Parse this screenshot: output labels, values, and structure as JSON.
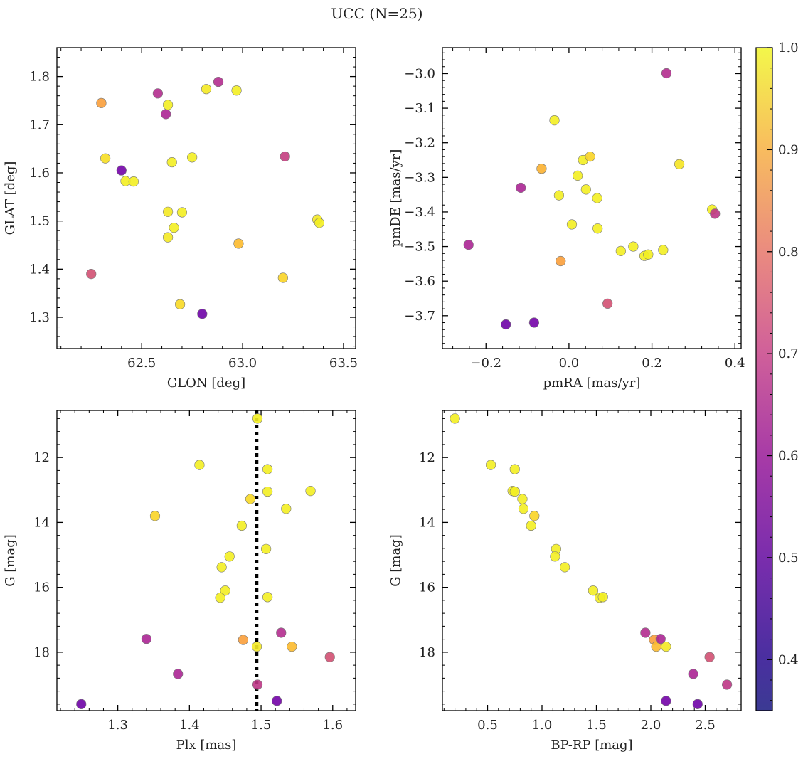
{
  "figure": {
    "title": "UCC (N=25)"
  },
  "colorbar": {
    "colormap": "plasma",
    "vmin": 0.35,
    "vmax": 1.0,
    "ticks": [
      0.4,
      0.5,
      0.6,
      0.7,
      0.8,
      0.9,
      1.0
    ],
    "tick_labels": [
      "0.4",
      "0.5",
      "0.6",
      "0.7",
      "0.8",
      "0.9",
      "1.0"
    ]
  },
  "chart_data": [
    {
      "id": "glon-glat",
      "type": "scatter",
      "title": "",
      "xlabel": "GLON [deg]",
      "ylabel": "GLAT [deg]",
      "xlim": [
        62.08,
        63.56
      ],
      "ylim": [
        1.235,
        1.86
      ],
      "xticks": [
        62.5,
        63.0,
        63.5
      ],
      "xtick_labels": [
        "62.5",
        "63.0",
        "63.5"
      ],
      "yticks": [
        1.3,
        1.4,
        1.5,
        1.6,
        1.7,
        1.8
      ],
      "ytick_labels": [
        "1.3",
        "1.4",
        "1.5",
        "1.6",
        "1.7",
        "1.8"
      ],
      "x": [
        62.25,
        62.3,
        62.32,
        62.4,
        62.42,
        62.46,
        62.58,
        62.62,
        62.63,
        62.63,
        62.63,
        62.65,
        62.66,
        62.69,
        62.7,
        62.75,
        62.8,
        62.82,
        62.88,
        62.97,
        62.98,
        63.2,
        63.21,
        63.37,
        63.38
      ],
      "y": [
        1.39,
        1.745,
        1.63,
        1.605,
        1.583,
        1.582,
        1.765,
        1.722,
        1.741,
        1.519,
        1.466,
        1.622,
        1.486,
        1.327,
        1.518,
        1.632,
        1.307,
        1.774,
        1.789,
        1.771,
        1.453,
        1.382,
        1.634,
        1.503,
        1.496
      ],
      "c": [
        0.62,
        0.82,
        0.95,
        0.37,
        0.98,
        0.98,
        0.52,
        0.5,
        0.98,
        0.97,
        0.97,
        0.98,
        0.98,
        0.94,
        0.98,
        0.98,
        0.36,
        0.97,
        0.52,
        0.98,
        0.88,
        0.93,
        0.57,
        0.97,
        0.98
      ],
      "vlines": []
    },
    {
      "id": "pmra-pmde",
      "type": "scatter",
      "title": "",
      "xlabel": "pmRA [mas/yr]",
      "ylabel": "pmDE [mas/yr]",
      "xlim": [
        -0.305,
        0.415
      ],
      "ylim": [
        -3.795,
        -2.925
      ],
      "xticks": [
        -0.2,
        0.0,
        0.2,
        0.4
      ],
      "xtick_labels": [
        "−0.2",
        "0.0",
        "0.2",
        "0.4"
      ],
      "yticks": [
        -3.7,
        -3.6,
        -3.5,
        -3.4,
        -3.3,
        -3.2,
        -3.1,
        -3.0
      ],
      "ytick_labels": [
        "−3.7",
        "−3.6",
        "−3.5",
        "−3.4",
        "−3.3",
        "−3.2",
        "−3.1",
        "−3.0"
      ],
      "x": [
        -0.242,
        -0.152,
        -0.116,
        -0.084,
        -0.066,
        -0.035,
        -0.024,
        -0.02,
        0.007,
        0.021,
        0.034,
        0.041,
        0.051,
        0.068,
        0.069,
        0.093,
        0.125,
        0.155,
        0.182,
        0.191,
        0.227,
        0.235,
        0.266,
        0.345,
        0.352
      ],
      "y": [
        -3.495,
        -3.725,
        -3.33,
        -3.72,
        -3.275,
        -3.135,
        -3.352,
        -3.542,
        -3.436,
        -3.295,
        -3.25,
        -3.335,
        -3.24,
        -3.36,
        -3.448,
        -3.665,
        -3.513,
        -3.5,
        -3.527,
        -3.523,
        -3.51,
        -2.999,
        -3.262,
        -3.393,
        -3.405
      ],
      "c": [
        0.5,
        0.36,
        0.5,
        0.37,
        0.86,
        0.98,
        0.98,
        0.82,
        0.98,
        0.98,
        0.98,
        0.98,
        0.93,
        0.98,
        0.98,
        0.62,
        0.98,
        0.98,
        0.98,
        0.98,
        0.98,
        0.52,
        0.96,
        0.98,
        0.55
      ],
      "vlines": []
    },
    {
      "id": "plx-g",
      "type": "scatter",
      "title": "",
      "xlabel": "Plx [mas]",
      "ylabel": "G [mag]",
      "xlim": [
        1.215,
        1.632
      ],
      "ylim": [
        19.8,
        10.55
      ],
      "y_inverted": true,
      "xticks": [
        1.3,
        1.4,
        1.5,
        1.6
      ],
      "xtick_labels": [
        "1.3",
        "1.4",
        "1.5",
        "1.6"
      ],
      "yticks": [
        12,
        14,
        16,
        18
      ],
      "ytick_labels": [
        "12",
        "14",
        "16",
        "18"
      ],
      "x": [
        1.495,
        1.414,
        1.509,
        1.569,
        1.509,
        1.485,
        1.535,
        1.352,
        1.473,
        1.507,
        1.456,
        1.445,
        1.45,
        1.443,
        1.509,
        1.34,
        1.475,
        1.494,
        1.528,
        1.543,
        1.596,
        1.384,
        1.495,
        1.522,
        1.249
      ],
      "y": [
        10.8,
        12.23,
        12.36,
        13.03,
        13.05,
        13.28,
        13.58,
        13.8,
        14.1,
        14.82,
        15.05,
        15.38,
        16.1,
        16.32,
        16.3,
        17.59,
        17.62,
        17.83,
        17.4,
        17.83,
        18.15,
        18.67,
        19.0,
        19.5,
        19.6
      ],
      "c": [
        0.98,
        0.98,
        0.98,
        0.98,
        0.98,
        0.94,
        0.98,
        0.93,
        0.98,
        0.98,
        0.98,
        0.98,
        0.98,
        0.98,
        0.98,
        0.5,
        0.82,
        0.97,
        0.52,
        0.88,
        0.62,
        0.5,
        0.55,
        0.37,
        0.36
      ],
      "vlines": [
        1.494
      ]
    },
    {
      "id": "bprp-g",
      "type": "scatter",
      "title": "",
      "xlabel": "BP-RP [mag]",
      "ylabel": "G [mag]",
      "xlim": [
        0.085,
        2.83
      ],
      "ylim": [
        19.8,
        10.55
      ],
      "y_inverted": true,
      "xticks": [
        0.5,
        1.0,
        1.5,
        2.0,
        2.5
      ],
      "xtick_labels": [
        "0.5",
        "1.0",
        "1.5",
        "2.0",
        "2.5"
      ],
      "yticks": [
        12,
        14,
        16,
        18
      ],
      "ytick_labels": [
        "12",
        "14",
        "16",
        "18"
      ],
      "x": [
        0.2,
        0.53,
        0.75,
        0.73,
        0.75,
        0.82,
        0.83,
        0.93,
        0.9,
        1.13,
        1.12,
        1.21,
        1.47,
        1.53,
        1.56,
        1.95,
        2.03,
        2.05,
        2.09,
        2.14,
        2.54,
        2.39,
        2.7,
        2.14,
        2.43
      ],
      "y": [
        10.8,
        12.23,
        12.36,
        13.03,
        13.05,
        13.28,
        13.58,
        13.8,
        14.1,
        14.82,
        15.05,
        15.38,
        16.1,
        16.32,
        16.3,
        17.4,
        17.62,
        17.83,
        17.59,
        17.83,
        18.15,
        18.67,
        19.0,
        19.5,
        19.6
      ],
      "c": [
        0.98,
        0.98,
        0.98,
        0.98,
        0.98,
        0.98,
        0.98,
        0.93,
        0.98,
        0.98,
        0.98,
        0.98,
        0.98,
        0.98,
        0.98,
        0.52,
        0.82,
        0.88,
        0.5,
        0.97,
        0.62,
        0.5,
        0.55,
        0.37,
        0.36
      ],
      "vlines": []
    }
  ]
}
